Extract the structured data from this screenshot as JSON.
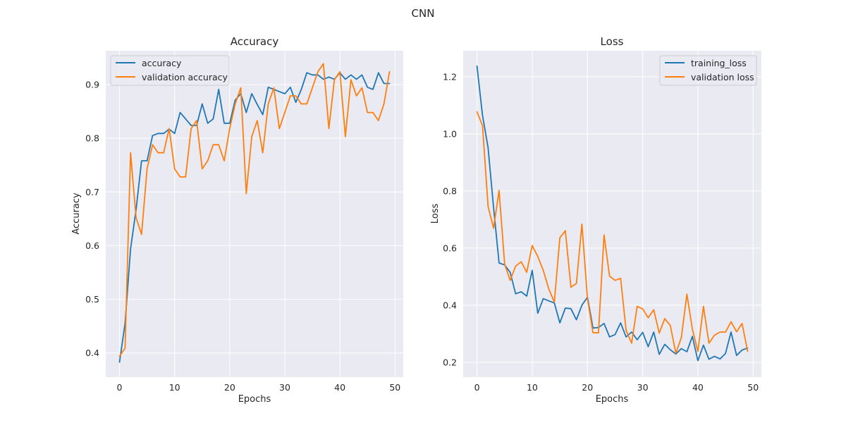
{
  "figure_title": "CNN",
  "colors": {
    "series1": "#1f77b4",
    "series2": "#ff7f0e",
    "axes_bg": "#eaeaf2",
    "grid": "#ffffff"
  },
  "chart_data": [
    {
      "type": "line",
      "title": "Accuracy",
      "xlabel": "Epochs",
      "ylabel": "Accuracy",
      "xlim": [
        -2.5,
        51.5
      ],
      "ylim": [
        0.355,
        0.963
      ],
      "xticks": [
        0,
        10,
        20,
        30,
        40,
        50
      ],
      "yticks": [
        0.4,
        0.5,
        0.6,
        0.7,
        0.8,
        0.9
      ],
      "grid": true,
      "legend_position": "upper-left",
      "x": [
        0,
        1,
        2,
        3,
        4,
        5,
        6,
        7,
        8,
        9,
        10,
        11,
        12,
        13,
        14,
        15,
        16,
        17,
        18,
        19,
        20,
        21,
        22,
        23,
        24,
        25,
        26,
        27,
        28,
        29,
        30,
        31,
        32,
        33,
        34,
        35,
        36,
        37,
        38,
        39,
        40,
        41,
        42,
        43,
        44,
        45,
        46,
        47,
        48,
        49
      ],
      "series": [
        {
          "name": "accuracy",
          "color": "#1f77b4",
          "values": [
            0.383,
            0.455,
            0.594,
            0.667,
            0.758,
            0.758,
            0.805,
            0.809,
            0.809,
            0.817,
            0.809,
            0.848,
            0.836,
            0.824,
            0.824,
            0.864,
            0.828,
            0.836,
            0.891,
            0.828,
            0.828,
            0.871,
            0.883,
            0.848,
            0.883,
            0.863,
            0.844,
            0.895,
            0.891,
            0.887,
            0.883,
            0.895,
            0.867,
            0.891,
            0.922,
            0.918,
            0.918,
            0.91,
            0.914,
            0.91,
            0.922,
            0.91,
            0.918,
            0.91,
            0.918,
            0.895,
            0.891,
            0.922,
            0.902,
            0.902
          ]
        },
        {
          "name": "validation accuracy",
          "color": "#ff7f0e",
          "values": [
            0.394,
            0.409,
            0.773,
            0.652,
            0.621,
            0.743,
            0.788,
            0.773,
            0.773,
            0.818,
            0.743,
            0.728,
            0.728,
            0.818,
            0.833,
            0.743,
            0.758,
            0.788,
            0.788,
            0.758,
            0.818,
            0.864,
            0.894,
            0.697,
            0.803,
            0.833,
            0.773,
            0.864,
            0.894,
            0.818,
            0.848,
            0.879,
            0.879,
            0.864,
            0.864,
            0.894,
            0.924,
            0.939,
            0.818,
            0.909,
            0.924,
            0.803,
            0.909,
            0.879,
            0.894,
            0.848,
            0.848,
            0.833,
            0.864,
            0.924
          ]
        }
      ]
    },
    {
      "type": "line",
      "title": "Loss",
      "xlabel": "Epochs",
      "ylabel": "Loss",
      "xlim": [
        -2.5,
        51.5
      ],
      "ylim": [
        0.148,
        1.291
      ],
      "xticks": [
        0,
        10,
        20,
        30,
        40,
        50
      ],
      "yticks": [
        0.2,
        0.4,
        0.6,
        0.8,
        1.0,
        1.2
      ],
      "grid": true,
      "legend_position": "upper-right",
      "x": [
        0,
        1,
        2,
        3,
        4,
        5,
        6,
        7,
        8,
        9,
        10,
        11,
        12,
        13,
        14,
        15,
        16,
        17,
        18,
        19,
        20,
        21,
        22,
        23,
        24,
        25,
        26,
        27,
        28,
        29,
        30,
        31,
        32,
        33,
        34,
        35,
        36,
        37,
        38,
        39,
        40,
        41,
        42,
        43,
        44,
        45,
        46,
        47,
        48,
        49
      ],
      "series": [
        {
          "name": "training_loss",
          "color": "#1f77b4",
          "values": [
            1.237,
            1.065,
            0.952,
            0.742,
            0.548,
            0.541,
            0.515,
            0.44,
            0.447,
            0.432,
            0.522,
            0.372,
            0.423,
            0.415,
            0.408,
            0.338,
            0.39,
            0.388,
            0.349,
            0.4,
            0.428,
            0.32,
            0.322,
            0.336,
            0.289,
            0.297,
            0.338,
            0.289,
            0.306,
            0.279,
            0.305,
            0.255,
            0.306,
            0.228,
            0.263,
            0.244,
            0.229,
            0.248,
            0.237,
            0.291,
            0.206,
            0.26,
            0.211,
            0.221,
            0.212,
            0.231,
            0.306,
            0.224,
            0.243,
            0.25
          ]
        },
        {
          "name": "validation loss",
          "color": "#ff7f0e",
          "values": [
            1.077,
            1.029,
            0.746,
            0.67,
            0.802,
            0.544,
            0.487,
            0.537,
            0.552,
            0.515,
            0.609,
            0.571,
            0.522,
            0.457,
            0.411,
            0.636,
            0.661,
            0.463,
            0.476,
            0.684,
            0.422,
            0.304,
            0.303,
            0.646,
            0.502,
            0.487,
            0.494,
            0.312,
            0.267,
            0.396,
            0.387,
            0.356,
            0.384,
            0.302,
            0.353,
            0.329,
            0.232,
            0.286,
            0.439,
            0.316,
            0.238,
            0.396,
            0.267,
            0.295,
            0.306,
            0.306,
            0.342,
            0.307,
            0.336,
            0.239
          ]
        }
      ]
    }
  ]
}
